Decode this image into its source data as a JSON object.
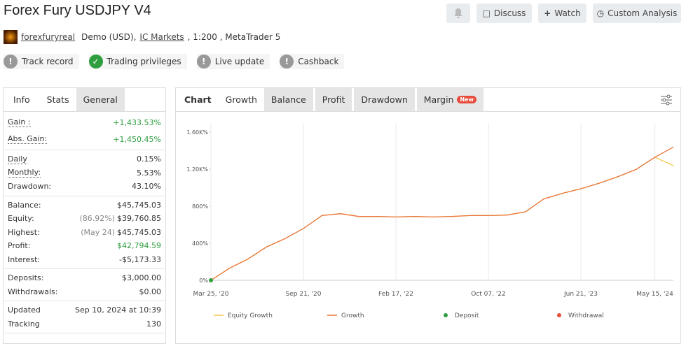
{
  "header": {
    "title": "Forex Fury USDJPY V4",
    "buttons": [
      "Discuss",
      "Watch",
      "Custom Analysis"
    ],
    "account": {
      "user": "forexfuryreal",
      "text1": "Demo (USD),",
      "broker": "IC Markets",
      "text2": ", 1:200 , MetaTrader 5"
    },
    "badges": [
      "Track record",
      "Trading privileges",
      "Live update",
      "Cashback"
    ]
  },
  "stats": {
    "tabs": [
      "Info",
      "Stats",
      "General"
    ],
    "groups": [
      [
        {
          "label": "Gain :",
          "value": "+1,433.53%",
          "color": "#2e9e3f"
        },
        {
          "label": "Abs. Gain:",
          "value": "+1,450.45%",
          "color": "#2e9e3f"
        }
      ],
      [
        {
          "label": "Daily",
          "value": "0.15%"
        },
        {
          "label": "Monthly:",
          "value": "5.53%"
        },
        {
          "label": "Drawdown:",
          "value": "43.10%"
        }
      ],
      [
        {
          "label": "Balance:",
          "value": "$45,745.03"
        },
        {
          "label": "Equity:",
          "note": "(86.92%)",
          "value": "$39,760.85"
        },
        {
          "label": "Highest:",
          "note": "(May 24)",
          "value": "$45,745.03"
        },
        {
          "label": "Profit:",
          "value": "$42,794.59",
          "color": "#2e9e3f"
        },
        {
          "label": "Interest:",
          "value": "-$5,173.33"
        }
      ],
      [
        {
          "label": "Deposits:",
          "value": "$3,000.00"
        },
        {
          "label": "Withdrawals:",
          "value": "$0.00"
        }
      ],
      [
        {
          "label": "Updated",
          "value": "Sep 10, 2024 at 10:39"
        },
        {
          "label": "Tracking",
          "value": "130"
        }
      ]
    ]
  },
  "chart_tabs": {
    "tabs": [
      "Chart",
      "Growth",
      "Balance",
      "Profit",
      "Drawdown",
      "Margin"
    ],
    "badge": "New"
  },
  "chart_data": {
    "type": "line",
    "categories": [
      "Mar 25, '20",
      null,
      null,
      null,
      null,
      "Sep 21, '20",
      null,
      null,
      null,
      null,
      "Feb 17, '22",
      null,
      null,
      null,
      null,
      "Oct 07, '22",
      null,
      null,
      null,
      null,
      "Jun 21, '23",
      null,
      null,
      null,
      "May 15, '24",
      null
    ],
    "ylim": [
      0,
      1700
    ],
    "yticks": [
      {
        "value": 0,
        "label": "0%"
      },
      {
        "value": 400,
        "label": "400%"
      },
      {
        "value": 800,
        "label": "800%"
      },
      {
        "value": 1200,
        "label": "1.20K%"
      },
      {
        "value": 1600,
        "label": "1.60K%"
      }
    ],
    "grid": true,
    "series": [
      {
        "name": "Equity Growth",
        "color": "#f2c94c",
        "values": [
          0,
          130,
          230,
          360,
          450,
          560,
          700,
          720,
          690,
          690,
          685,
          690,
          685,
          690,
          700,
          700,
          705,
          740,
          880,
          940,
          990,
          1050,
          1120,
          1200,
          1330,
          1240
        ]
      },
      {
        "name": "Growth",
        "color": "#e8743b",
        "values": [
          0,
          130,
          230,
          360,
          450,
          560,
          700,
          720,
          690,
          690,
          685,
          690,
          685,
          690,
          700,
          700,
          705,
          740,
          880,
          940,
          990,
          1050,
          1120,
          1200,
          1330,
          1440
        ]
      },
      {
        "name": "Deposit",
        "color": "#2e9e3f",
        "values": [
          0,
          null,
          null,
          null,
          null,
          null,
          null,
          null,
          null,
          null,
          null,
          null,
          null,
          null,
          null,
          null,
          null,
          null,
          null,
          null,
          null,
          null,
          null,
          null,
          null,
          null
        ]
      },
      {
        "name": "Withdrawal",
        "color": "#e74c3c",
        "values": [
          null,
          null,
          null,
          null,
          null,
          null,
          null,
          null,
          null,
          null,
          null,
          null,
          null,
          null,
          null,
          null,
          null,
          null,
          null,
          null,
          null,
          null,
          null,
          null,
          null,
          null
        ]
      }
    ]
  }
}
